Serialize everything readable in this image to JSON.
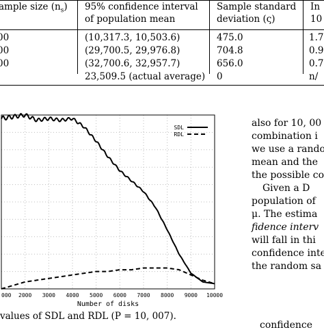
{
  "table": {
    "headers": {
      "col1": "ample size (n",
      "col1_sub": "s",
      "col1_close": ")",
      "col2_line1": "95% confidence interval",
      "col2_line2": "of population mean",
      "col3_line1": "Sample standard",
      "col3_line2": "deviation (ς)",
      "col4_line1": "In",
      "col4_line2": "10"
    },
    "rows": [
      {
        "c1": "00",
        "c2": "(10,317.3, 10,503.6)",
        "c3": "475.0",
        "c4": "1.7"
      },
      {
        "c1": "00",
        "c2": "(29,700.5, 29,976.8)",
        "c3": "704.8",
        "c4": "0.9"
      },
      {
        "c1": "00",
        "c2": "(32,700.6, 32,957.7)",
        "c3": "656.0",
        "c4": "0.7"
      },
      {
        "c1": "",
        "c2": "23,509.5 (actual average)",
        "c3": "0",
        "c4": "n/"
      }
    ]
  },
  "chart_data": {
    "type": "line",
    "xlabel": "Number of disks",
    "ylabel": "",
    "xlim": [
      0,
      10000
    ],
    "x_ticks": [
      "000",
      "2000",
      "3000",
      "4000",
      "5000",
      "6000",
      "7000",
      "8000",
      "9000",
      "10000"
    ],
    "x_tick_values": [
      1000,
      2000,
      3000,
      4000,
      5000,
      6000,
      7000,
      8000,
      9000,
      10000
    ],
    "grid": true,
    "legend_position": "top-right",
    "series": [
      {
        "name": "SDL",
        "style": "solid",
        "x": [
          1000,
          1500,
          2000,
          2500,
          3000,
          3500,
          4000,
          4500,
          5000,
          5500,
          6000,
          6500,
          7000,
          7500,
          8000,
          8500,
          9000,
          9500,
          10000
        ],
        "y": [
          0.98,
          0.99,
          1.0,
          0.97,
          0.98,
          0.97,
          0.98,
          0.93,
          0.85,
          0.76,
          0.68,
          0.62,
          0.56,
          0.47,
          0.34,
          0.2,
          0.09,
          0.04,
          0.03
        ]
      },
      {
        "name": "RDL",
        "style": "dashed",
        "x": [
          1000,
          1500,
          2000,
          2500,
          3000,
          3500,
          4000,
          4500,
          5000,
          5500,
          6000,
          6500,
          7000,
          7500,
          8000,
          8500,
          9000,
          9500,
          10000
        ],
        "y": [
          0.0,
          0.02,
          0.04,
          0.05,
          0.06,
          0.07,
          0.08,
          0.09,
          0.1,
          0.1,
          0.11,
          0.11,
          0.12,
          0.12,
          0.12,
          0.11,
          0.08,
          0.05,
          0.03
        ]
      }
    ]
  },
  "caption": "values of SDL and RDL (P = 10, 007).",
  "right_column": {
    "lines": [
      "also for 10, 00",
      "combination i",
      "we use a rando",
      "mean and the",
      "the possible co",
      "Given a D",
      "population of",
      "μ. The estima",
      "fidence interv",
      "will fall in thi",
      "confidence inte",
      "the random sa"
    ],
    "bottom_cut": "confidence"
  }
}
